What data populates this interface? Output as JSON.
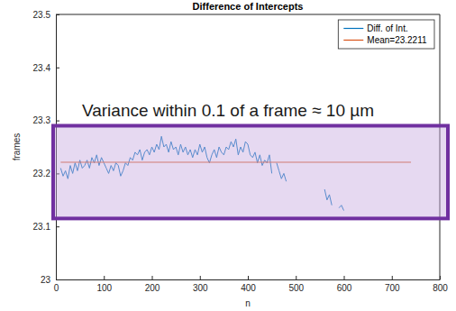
{
  "chart_data": {
    "type": "line",
    "title": "Difference of Intercepts",
    "x_label": "n",
    "y_label": "frames",
    "xlim": [
      0,
      800
    ],
    "ylim": [
      23,
      23.5
    ],
    "xticks": [
      0,
      100,
      200,
      300,
      400,
      500,
      600,
      700,
      800
    ],
    "yticks": [
      23,
      23.1,
      23.2,
      23.3,
      23.4,
      23.5
    ],
    "grid": false,
    "legend": "northeast",
    "series": [
      {
        "name": "Diff. of Int.",
        "color": "#0072bd",
        "x": [
          10,
          15,
          20,
          25,
          30,
          35,
          40,
          45,
          50,
          55,
          60,
          65,
          70,
          75,
          80,
          85,
          90,
          95,
          100,
          105,
          110,
          115,
          120,
          125,
          130,
          135,
          140,
          145,
          150,
          155,
          160,
          165,
          170,
          175,
          180,
          185,
          190,
          195,
          200,
          205,
          210,
          215,
          220,
          225,
          230,
          235,
          240,
          245,
          250,
          255,
          260,
          265,
          270,
          275,
          280,
          285,
          290,
          295,
          300,
          305,
          310,
          315,
          320,
          325,
          330,
          335,
          340,
          345,
          350,
          355,
          360,
          365,
          370,
          375,
          380,
          385,
          390,
          395,
          400,
          405,
          410,
          415,
          420,
          425,
          430,
          435,
          440,
          445,
          450,
          455,
          460,
          465,
          470,
          475,
          480,
          485,
          560,
          565,
          570,
          575,
          580,
          590,
          595,
          600
        ],
        "values": [
          23.21,
          23.195,
          23.205,
          23.19,
          23.215,
          23.2,
          23.22,
          23.205,
          23.225,
          23.21,
          23.215,
          23.225,
          23.21,
          23.23,
          23.22,
          23.235,
          23.215,
          23.23,
          23.22,
          23.21,
          23.2,
          23.215,
          23.205,
          23.22,
          23.215,
          23.195,
          23.205,
          23.22,
          23.215,
          23.23,
          23.225,
          23.24,
          23.235,
          23.245,
          23.225,
          23.24,
          23.245,
          23.235,
          23.25,
          23.24,
          23.255,
          23.245,
          23.27,
          23.25,
          23.255,
          23.24,
          23.26,
          23.245,
          23.25,
          23.235,
          23.255,
          23.24,
          23.25,
          23.235,
          23.245,
          23.23,
          23.245,
          23.235,
          23.255,
          23.24,
          23.25,
          23.23,
          23.22,
          23.235,
          23.245,
          23.23,
          23.25,
          23.24,
          23.235,
          23.25,
          23.245,
          23.26,
          23.25,
          23.265,
          23.235,
          23.25,
          23.24,
          23.26,
          23.255,
          23.235,
          23.23,
          23.24,
          23.22,
          23.235,
          23.215,
          23.225,
          23.22,
          23.235,
          23.2,
          null,
          23.22,
          23.205,
          23.19,
          23.2,
          23.185,
          null,
          23.17,
          23.15,
          23.16,
          23.14,
          null,
          23.135,
          23.14,
          23.13
        ]
      },
      {
        "name": "Mean=23.2211",
        "color": "#d95319",
        "x": [
          10,
          740
        ],
        "values": [
          23.2211,
          23.2211
        ]
      }
    ],
    "annotations": [
      {
        "text": "Variance within 0.1 of a frame ≈ 10 µm",
        "band": [
          23.115,
          23.29
        ]
      }
    ]
  }
}
